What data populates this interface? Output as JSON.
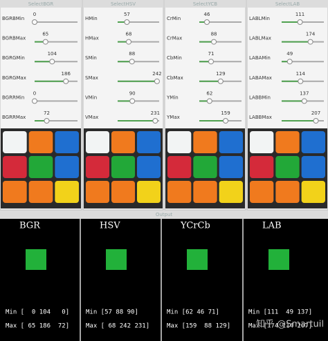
{
  "windows": [
    {
      "title": "SelectBGR",
      "sliders": [
        {
          "label": "BGRBMin",
          "value": 0
        },
        {
          "label": "BGRBMax",
          "value": 65
        },
        {
          "label": "BGRGMin",
          "value": 104
        },
        {
          "label": "BGRGMax",
          "value": 186
        },
        {
          "label": "BGRRMin",
          "value": 0
        },
        {
          "label": "BGRRMax",
          "value": 72
        }
      ]
    },
    {
      "title": "SelectHSV",
      "sliders": [
        {
          "label": "HMin",
          "value": 57
        },
        {
          "label": "HMax",
          "value": 68
        },
        {
          "label": "SMin",
          "value": 88
        },
        {
          "label": "SMax",
          "value": 242
        },
        {
          "label": "VMin",
          "value": 90
        },
        {
          "label": "VMax",
          "value": 231
        }
      ]
    },
    {
      "title": "SelectYCB",
      "sliders": [
        {
          "label": "CrMin",
          "value": 46
        },
        {
          "label": "CrMax",
          "value": 88
        },
        {
          "label": "CbMin",
          "value": 71
        },
        {
          "label": "CbMax",
          "value": 129
        },
        {
          "label": "YMin",
          "value": 62
        },
        {
          "label": "YMax",
          "value": 159
        }
      ]
    },
    {
      "title": "SelectLAB",
      "sliders": [
        {
          "label": "LABLMin",
          "value": 111
        },
        {
          "label": "LABLMax",
          "value": 174
        },
        {
          "label": "LABAMin",
          "value": 49
        },
        {
          "label": "LABAMax",
          "value": 114
        },
        {
          "label": "LABBMin",
          "value": 137
        },
        {
          "label": "LABBMax",
          "value": 207
        }
      ]
    }
  ],
  "slider_range": [
    0,
    255
  ],
  "output": {
    "title": "Output",
    "sections": [
      {
        "label": "BGR",
        "min": "Min [  0 104   0]",
        "max": "Max [ 65 186  72]"
      },
      {
        "label": "HSV",
        "min": "Min [57 88 90]",
        "max": "Max [ 68 242 231]"
      },
      {
        "label": "YCrCb",
        "min": "Min [62 46 71]",
        "max": "Max [159  88 129]"
      },
      {
        "label": "LAB",
        "min": "Min [111  49 137]",
        "max": "Max [174 114 207]"
      }
    ]
  },
  "watermark": "知乎 @Smartuil"
}
